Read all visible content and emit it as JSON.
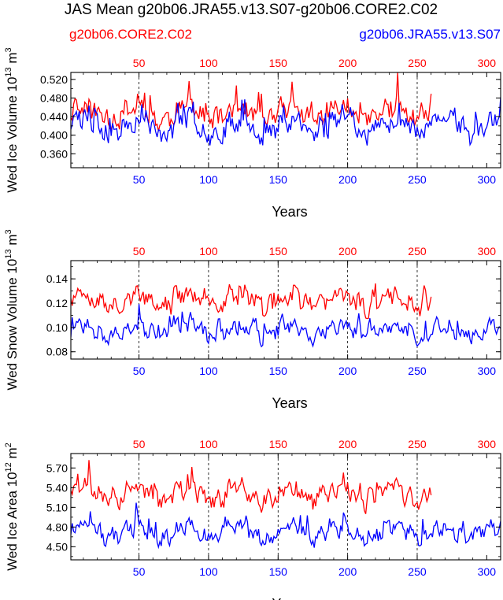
{
  "figure": {
    "title": "JAS Mean g20b06.JRA55.v13.S07-g20b06.CORE2.C02",
    "legend_left": "g20b06.CORE2.C02",
    "legend_right": "g20b06.JRA55.v13.S07",
    "colors": {
      "core": "#ff0000",
      "jra": "#0000ff",
      "axis": "#000000"
    }
  },
  "chart_data": [
    {
      "type": "line",
      "title": "Wed Ice Volume",
      "ylabel": "Wed Ice Volume",
      "ylabel_exp": "13",
      "ylabel_unit_exp": "3",
      "xlabel": "Years",
      "xlim": [
        1,
        310
      ],
      "ylim": [
        0.33,
        0.535
      ],
      "yticks": [
        0.36,
        0.4,
        0.44,
        0.48,
        0.52
      ],
      "ytick_labels": [
        "0.360",
        "0.400",
        "0.440",
        "0.480",
        "0.520"
      ],
      "xticks": [
        50,
        100,
        150,
        200,
        250,
        300
      ],
      "grid_x": [
        50,
        100,
        150,
        200,
        250
      ],
      "series": [
        {
          "name": "g20b06.CORE2.C02",
          "years": 260,
          "base": 0.446,
          "amp": 0.034,
          "seed": 11
        },
        {
          "name": "g20b06.JRA55.v13.S07",
          "years": 310,
          "base": 0.418,
          "amp": 0.034,
          "seed": 23
        }
      ]
    },
    {
      "type": "line",
      "title": "Wed Snow Volume",
      "ylabel": "Wed Snow Volume",
      "ylabel_exp": "13",
      "ylabel_unit_exp": "3",
      "xlabel": "Years",
      "xlim": [
        1,
        310
      ],
      "ylim": [
        0.074,
        0.155
      ],
      "yticks": [
        0.08,
        0.1,
        0.12,
        0.14
      ],
      "ytick_labels": [
        "0.08",
        "0.10",
        "0.12",
        "0.14"
      ],
      "xticks": [
        50,
        100,
        150,
        200,
        250,
        300
      ],
      "grid_x": [
        50,
        100,
        150,
        200,
        250
      ],
      "series": [
        {
          "name": "g20b06.CORE2.C02",
          "years": 260,
          "base": 0.122,
          "amp": 0.012,
          "seed": 37
        },
        {
          "name": "g20b06.JRA55.v13.S07",
          "years": 310,
          "base": 0.097,
          "amp": 0.01,
          "seed": 53
        }
      ]
    },
    {
      "type": "line",
      "title": "Wed Ice Area",
      "ylabel": "Wed Ice Area",
      "ylabel_exp": "12",
      "ylabel_unit_exp": "2",
      "xlabel": "Years",
      "xlim": [
        1,
        310
      ],
      "ylim": [
        4.3,
        5.92
      ],
      "yticks": [
        4.5,
        4.8,
        5.1,
        5.4,
        5.7
      ],
      "ytick_labels": [
        "4.50",
        "4.80",
        "5.10",
        "5.40",
        "5.70"
      ],
      "xticks": [
        50,
        100,
        150,
        200,
        250,
        300
      ],
      "grid_x": [
        50,
        100,
        150,
        200,
        250
      ],
      "series": [
        {
          "name": "g20b06.CORE2.C02",
          "years": 260,
          "base": 5.3,
          "amp": 0.22,
          "seed": 71
        },
        {
          "name": "g20b06.JRA55.v13.S07",
          "years": 310,
          "base": 4.72,
          "amp": 0.2,
          "seed": 89
        }
      ]
    }
  ]
}
